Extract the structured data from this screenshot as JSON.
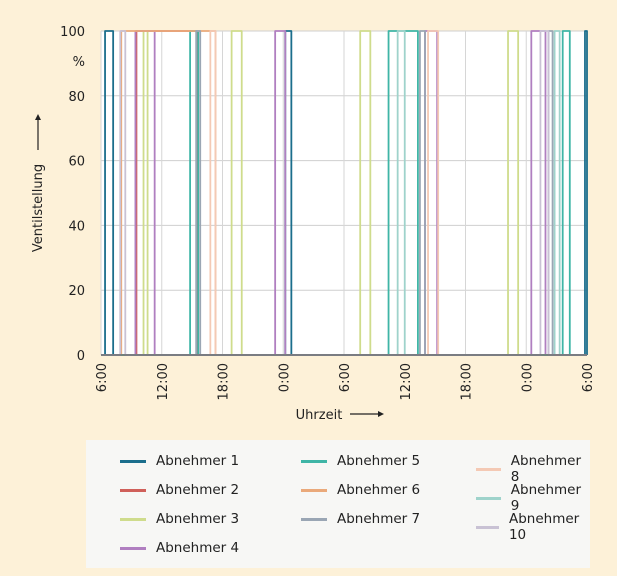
{
  "chart_data": {
    "type": "line",
    "title": "",
    "xlabel": "Uhrzeit",
    "ylabel": "Ventilstellung",
    "yunit": "%",
    "ylim": [
      0,
      100
    ],
    "yticks": [
      0,
      20,
      40,
      60,
      80,
      100
    ],
    "xlim_hours": [
      0,
      48
    ],
    "xtick_labels": [
      "6:00",
      "12:00",
      "18:00",
      "0:00",
      "6:00",
      "12:00",
      "18:00",
      "0:00",
      "6:00"
    ],
    "grid": true,
    "legend_position": "bottom",
    "series": [
      {
        "name": "Abnehmer 1",
        "color": "#1b6e8c",
        "on_intervals_h": [
          [
            0.4,
            1.2
          ],
          [
            18.2,
            18.8
          ],
          [
            47.8,
            48
          ]
        ]
      },
      {
        "name": "Abnehmer 2",
        "color": "#d0605a",
        "on_intervals_h": [
          [
            3.5,
            9.5
          ]
        ]
      },
      {
        "name": "Abnehmer 3",
        "color": "#cfdc8c",
        "on_intervals_h": [
          [
            4.2,
            4.6
          ],
          [
            12.9,
            13.9
          ],
          [
            25.6,
            26.6
          ],
          [
            40.2,
            41.2
          ]
        ]
      },
      {
        "name": "Abnehmer 4",
        "color": "#b07fc0",
        "on_intervals_h": [
          [
            3.4,
            5.3
          ],
          [
            17.2,
            18.2
          ],
          [
            32,
            33.2
          ],
          [
            42.5,
            43.9
          ]
        ]
      },
      {
        "name": "Abnehmer 5",
        "color": "#3fb5a6",
        "on_intervals_h": [
          [
            8.8,
            9.6
          ],
          [
            28.4,
            31.3
          ],
          [
            45.6,
            46.3
          ]
        ]
      },
      {
        "name": "Abnehmer 6",
        "color": "#eaa97a",
        "on_intervals_h": [
          [
            2,
            11.3
          ]
        ]
      },
      {
        "name": "Abnehmer 7",
        "color": "#9aa6b4",
        "on_intervals_h": [
          [
            9.4,
            9.8
          ],
          [
            31.5,
            32
          ],
          [
            44.2,
            44.6
          ]
        ]
      },
      {
        "name": "Abnehmer 8",
        "color": "#f4c9b4",
        "on_intervals_h": [
          [
            10.8,
            11.3
          ],
          [
            32.3,
            33.3
          ]
        ]
      },
      {
        "name": "Abnehmer 9",
        "color": "#9fd3cb",
        "on_intervals_h": [
          [
            29.3,
            30
          ],
          [
            44.8,
            45.3
          ]
        ]
      },
      {
        "name": "Abnehmer 10",
        "color": "#c9c2d4",
        "on_intervals_h": [
          [
            1.9,
            2.4
          ],
          [
            43.4,
            44.2
          ]
        ]
      }
    ]
  }
}
